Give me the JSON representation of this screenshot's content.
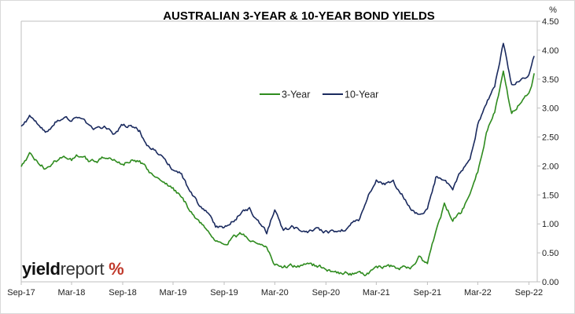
{
  "chart_data": {
    "type": "line",
    "title": "AUSTRALIAN 3-YEAR & 10-YEAR BOND YIELDS",
    "ylabel": "%",
    "ylim": [
      0,
      4.5
    ],
    "yticks": [
      "0.00",
      "0.50",
      "1.00",
      "1.50",
      "2.00",
      "2.50",
      "3.00",
      "3.50",
      "4.00",
      "4.50"
    ],
    "x_tick_labels": [
      "Sep-17",
      "Mar-18",
      "Sep-18",
      "Mar-19",
      "Sep-19",
      "Mar-20",
      "Sep-20",
      "Mar-21",
      "Sep-21",
      "Mar-22",
      "Sep-22"
    ],
    "x_ticks": [
      "2017-09-01",
      "2018-03-01",
      "2018-09-01",
      "2019-03-01",
      "2019-09-01",
      "2020-03-01",
      "2020-09-01",
      "2021-03-01",
      "2021-09-01",
      "2022-03-01",
      "2022-09-01"
    ],
    "xlim": [
      "2017-09-01",
      "2022-10-01"
    ],
    "grid": false,
    "legend": "center",
    "series": [
      {
        "name": "3-Year",
        "color": "#2e8b1e",
        "points": [
          [
            "2017-09-01",
            2.0
          ],
          [
            "2017-10-01",
            2.2
          ],
          [
            "2017-11-01",
            2.05
          ],
          [
            "2017-12-01",
            1.95
          ],
          [
            "2018-01-01",
            2.1
          ],
          [
            "2018-02-01",
            2.15
          ],
          [
            "2018-03-01",
            2.1
          ],
          [
            "2018-04-01",
            2.2
          ],
          [
            "2018-05-01",
            2.1
          ],
          [
            "2018-06-01",
            2.05
          ],
          [
            "2018-07-01",
            2.15
          ],
          [
            "2018-08-01",
            2.08
          ],
          [
            "2018-09-01",
            2.05
          ],
          [
            "2018-10-01",
            2.1
          ],
          [
            "2018-11-01",
            2.05
          ],
          [
            "2018-12-01",
            1.92
          ],
          [
            "2019-01-01",
            1.8
          ],
          [
            "2019-02-01",
            1.72
          ],
          [
            "2019-03-01",
            1.62
          ],
          [
            "2019-04-01",
            1.45
          ],
          [
            "2019-05-01",
            1.25
          ],
          [
            "2019-06-01",
            1.05
          ],
          [
            "2019-07-01",
            0.9
          ],
          [
            "2019-08-01",
            0.72
          ],
          [
            "2019-09-01",
            0.7
          ],
          [
            "2019-10-01",
            0.75
          ],
          [
            "2019-11-01",
            0.82
          ],
          [
            "2019-12-01",
            0.75
          ],
          [
            "2020-01-01",
            0.7
          ],
          [
            "2020-02-01",
            0.6
          ],
          [
            "2020-03-01",
            0.3
          ],
          [
            "2020-04-01",
            0.25
          ],
          [
            "2020-05-01",
            0.27
          ],
          [
            "2020-06-01",
            0.28
          ],
          [
            "2020-07-01",
            0.27
          ],
          [
            "2020-08-01",
            0.27
          ],
          [
            "2020-09-01",
            0.23
          ],
          [
            "2020-10-01",
            0.18
          ],
          [
            "2020-11-01",
            0.15
          ],
          [
            "2020-12-01",
            0.14
          ],
          [
            "2021-01-01",
            0.15
          ],
          [
            "2021-02-01",
            0.15
          ],
          [
            "2021-03-01",
            0.2
          ],
          [
            "2021-04-01",
            0.28
          ],
          [
            "2021-05-01",
            0.27
          ],
          [
            "2021-06-01",
            0.25
          ],
          [
            "2021-07-01",
            0.22
          ],
          [
            "2021-08-01",
            0.4
          ],
          [
            "2021-09-01",
            0.3
          ],
          [
            "2021-10-01",
            0.85
          ],
          [
            "2021-11-01",
            1.3
          ],
          [
            "2021-12-01",
            1.1
          ],
          [
            "2022-01-01",
            1.2
          ],
          [
            "2022-02-01",
            1.5
          ],
          [
            "2022-03-01",
            1.9
          ],
          [
            "2022-04-01",
            2.6
          ],
          [
            "2022-05-01",
            2.95
          ],
          [
            "2022-06-01",
            3.6
          ],
          [
            "2022-07-01",
            2.9
          ],
          [
            "2022-08-01",
            3.1
          ],
          [
            "2022-09-01",
            3.3
          ],
          [
            "2022-09-20",
            3.6
          ]
        ]
      },
      {
        "name": "10-Year",
        "color": "#1a2a5e",
        "points": [
          [
            "2017-09-01",
            2.7
          ],
          [
            "2017-10-01",
            2.85
          ],
          [
            "2017-11-01",
            2.7
          ],
          [
            "2017-12-01",
            2.6
          ],
          [
            "2018-01-01",
            2.75
          ],
          [
            "2018-02-01",
            2.85
          ],
          [
            "2018-03-01",
            2.8
          ],
          [
            "2018-04-01",
            2.78
          ],
          [
            "2018-05-01",
            2.7
          ],
          [
            "2018-06-01",
            2.65
          ],
          [
            "2018-07-01",
            2.65
          ],
          [
            "2018-08-01",
            2.55
          ],
          [
            "2018-09-01",
            2.7
          ],
          [
            "2018-10-01",
            2.7
          ],
          [
            "2018-11-01",
            2.6
          ],
          [
            "2018-12-01",
            2.35
          ],
          [
            "2019-01-01",
            2.25
          ],
          [
            "2019-02-01",
            2.15
          ],
          [
            "2019-03-01",
            1.95
          ],
          [
            "2019-04-01",
            1.85
          ],
          [
            "2019-05-01",
            1.55
          ],
          [
            "2019-06-01",
            1.35
          ],
          [
            "2019-07-01",
            1.25
          ],
          [
            "2019-08-01",
            0.95
          ],
          [
            "2019-09-01",
            0.95
          ],
          [
            "2019-10-01",
            1.05
          ],
          [
            "2019-11-01",
            1.2
          ],
          [
            "2019-12-01",
            1.25
          ],
          [
            "2020-01-01",
            1.05
          ],
          [
            "2020-02-01",
            0.85
          ],
          [
            "2020-03-01",
            1.25
          ],
          [
            "2020-04-01",
            0.9
          ],
          [
            "2020-05-01",
            0.95
          ],
          [
            "2020-06-01",
            0.9
          ],
          [
            "2020-07-01",
            0.85
          ],
          [
            "2020-08-01",
            0.9
          ],
          [
            "2020-09-01",
            0.85
          ],
          [
            "2020-10-01",
            0.85
          ],
          [
            "2020-11-01",
            0.9
          ],
          [
            "2020-12-01",
            1.0
          ],
          [
            "2021-01-01",
            1.1
          ],
          [
            "2021-02-01",
            1.5
          ],
          [
            "2021-03-01",
            1.75
          ],
          [
            "2021-04-01",
            1.7
          ],
          [
            "2021-05-01",
            1.7
          ],
          [
            "2021-06-01",
            1.55
          ],
          [
            "2021-07-01",
            1.25
          ],
          [
            "2021-08-01",
            1.15
          ],
          [
            "2021-09-01",
            1.25
          ],
          [
            "2021-10-01",
            1.8
          ],
          [
            "2021-11-01",
            1.75
          ],
          [
            "2021-12-01",
            1.6
          ],
          [
            "2022-01-01",
            1.9
          ],
          [
            "2022-02-01",
            2.15
          ],
          [
            "2022-03-01",
            2.7
          ],
          [
            "2022-04-01",
            3.1
          ],
          [
            "2022-05-01",
            3.4
          ],
          [
            "2022-06-01",
            4.1
          ],
          [
            "2022-07-01",
            3.4
          ],
          [
            "2022-08-01",
            3.5
          ],
          [
            "2022-09-01",
            3.55
          ],
          [
            "2022-09-20",
            3.9
          ]
        ]
      }
    ]
  },
  "logo": {
    "word1": "yield",
    "word2": "report",
    "mark": "%"
  }
}
